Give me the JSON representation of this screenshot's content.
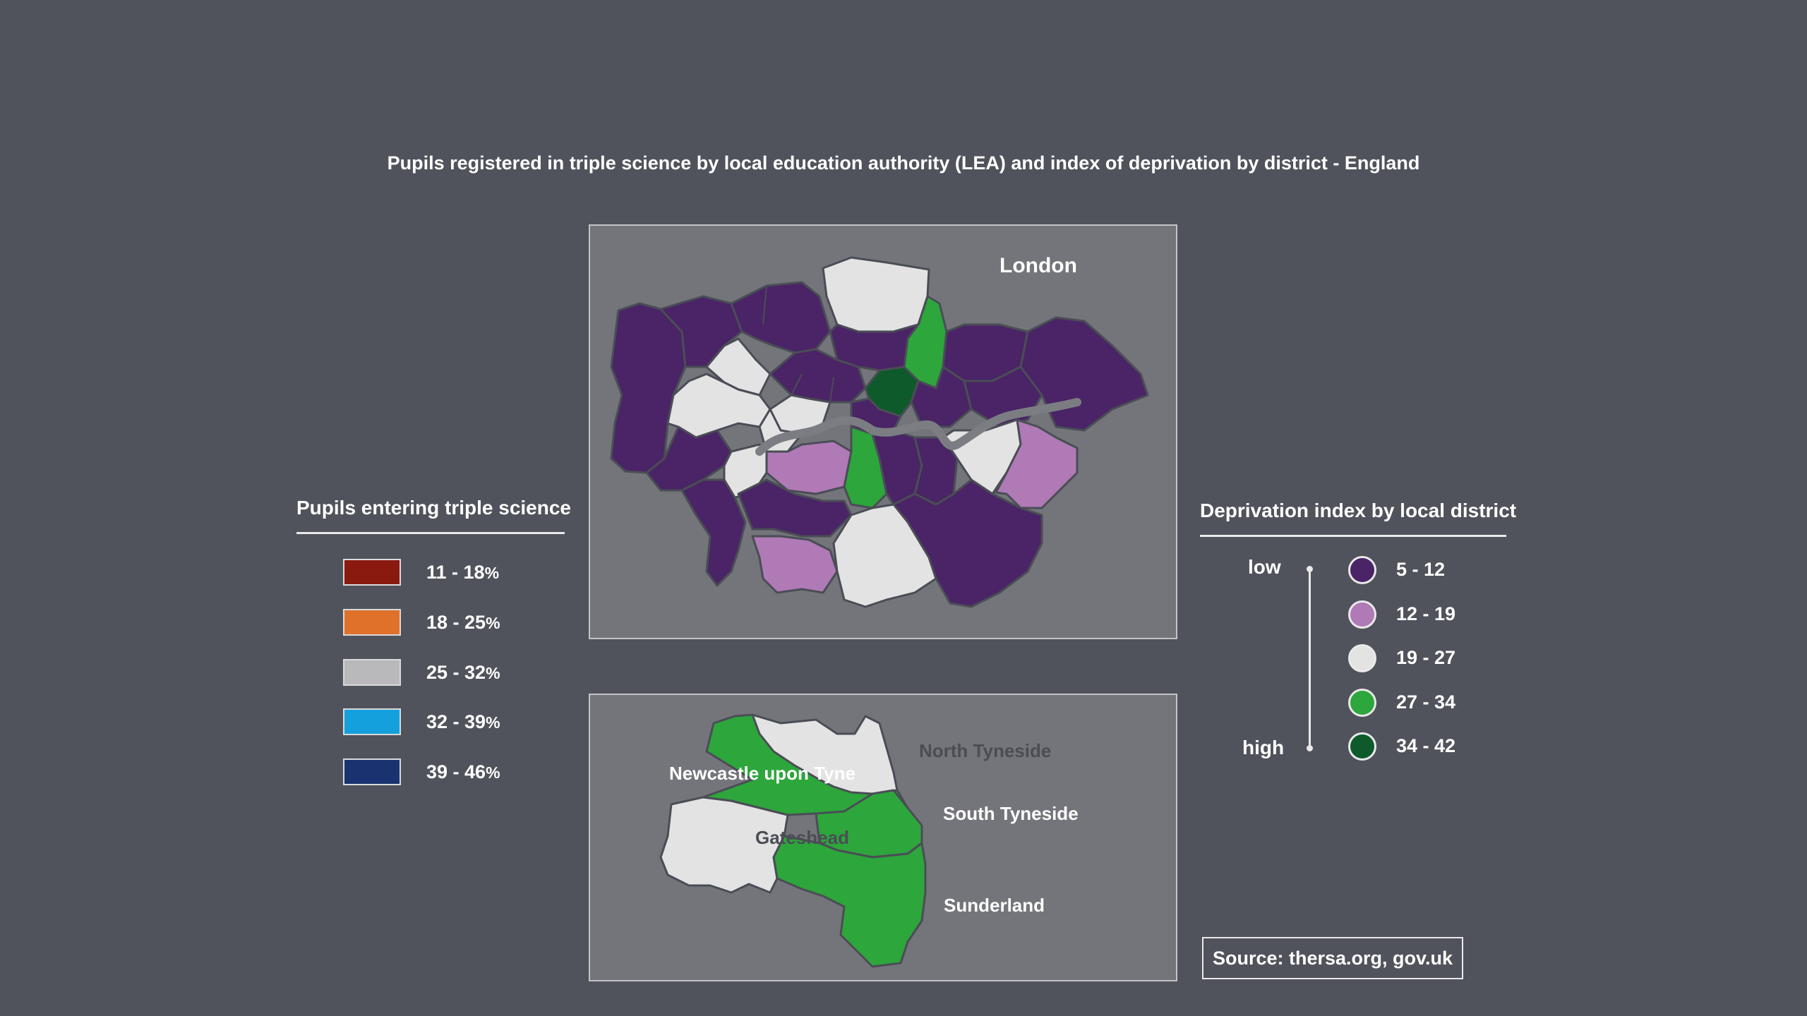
{
  "title": "Pupils registered in triple science by local education authority (LEA) and index of deprivation by district - England",
  "colors": {
    "background": "#50535b",
    "panel": "#74757b",
    "dep_5_12": "#4a2466",
    "dep_12_19": "#b07ab6",
    "dep_19_27": "#e3e3e4",
    "dep_27_34": "#2da63c",
    "dep_34_42": "#0e5a2a"
  },
  "london": {
    "label": "London"
  },
  "tyne": {
    "labels": {
      "newcastle": "Newcastle upon Tyne",
      "north_tyneside": "North Tyneside",
      "south_tyneside": "South Tyneside",
      "gateshead": "Gateshead",
      "sunderland": "Sunderland"
    }
  },
  "science_legend": {
    "heading": "Pupils entering triple science",
    "items": [
      {
        "range": "11 - 18",
        "unit": "%",
        "color": "#8a1a0f"
      },
      {
        "range": "18 - 25",
        "unit": "%",
        "color": "#e0712b"
      },
      {
        "range": "25 - 32",
        "unit": "%",
        "color": "#b9b9bb"
      },
      {
        "range": "32 - 39",
        "unit": "%",
        "color": "#14a0dd"
      },
      {
        "range": "39 - 46",
        "unit": "%",
        "color": "#1a3370"
      }
    ]
  },
  "deprivation_legend": {
    "heading": "Deprivation index by local district",
    "low": "low",
    "high": "high",
    "items": [
      {
        "range": "5 - 12",
        "color": "#4a2466"
      },
      {
        "range": "12 - 19",
        "color": "#b07ab6"
      },
      {
        "range": "19 - 27",
        "color": "#e3e3e4"
      },
      {
        "range": "27 - 34",
        "color": "#2da63c"
      },
      {
        "range": "34 - 42",
        "color": "#0e5a2a"
      }
    ]
  },
  "source": "Source: thersa.org, gov.uk"
}
